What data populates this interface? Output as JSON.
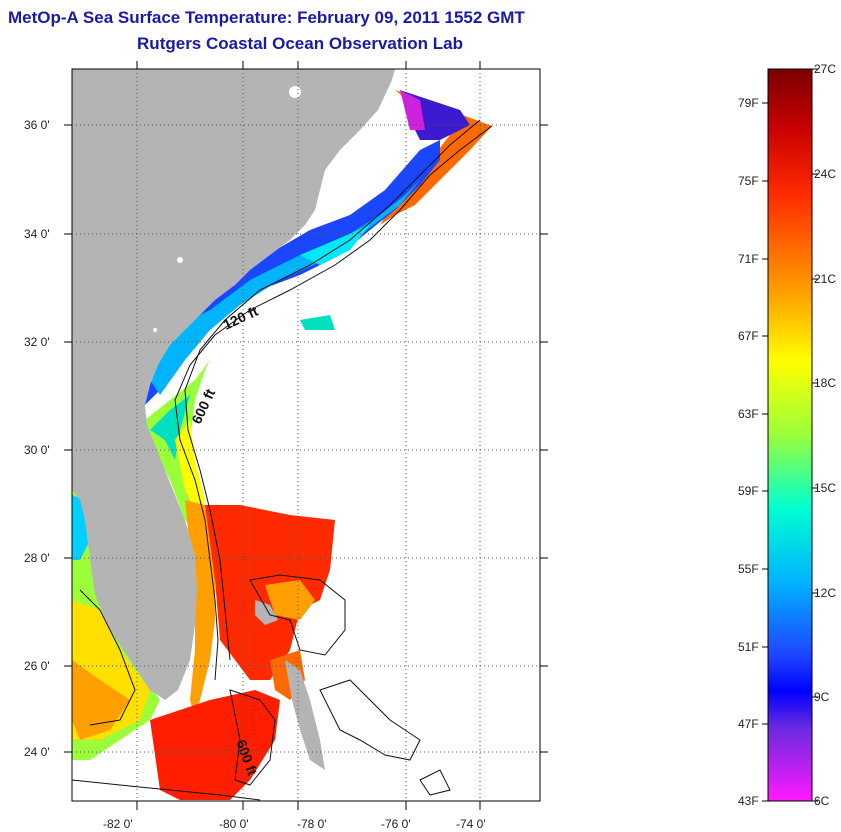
{
  "header": {
    "title": "MetOp-A Sea Surface Temperature:  February 09, 2011 1552 GMT",
    "subtitle": "Rutgers Coastal Ocean Observation Lab"
  },
  "map": {
    "lon_ticks": [
      "-82 0'",
      "-80 0'",
      "-78 0'",
      "-76 0'",
      "-74 0'"
    ],
    "lat_ticks": [
      "36 0'",
      "34 0'",
      "32 0'",
      "30 0'",
      "28 0'",
      "26 0'",
      "24 0'"
    ],
    "isobaths": [
      "120 ft",
      "600 ft",
      "600 ft"
    ],
    "land_color": "#b4b4b4"
  },
  "colorbar": {
    "fahrenheit": [
      "79F",
      "75F",
      "71F",
      "67F",
      "63F",
      "59F",
      "55F",
      "51F",
      "47F",
      "43F"
    ],
    "celsius": [
      "27C",
      "24C",
      "21C",
      "18C",
      "15C",
      "12C",
      "9C",
      "6C"
    ]
  }
}
